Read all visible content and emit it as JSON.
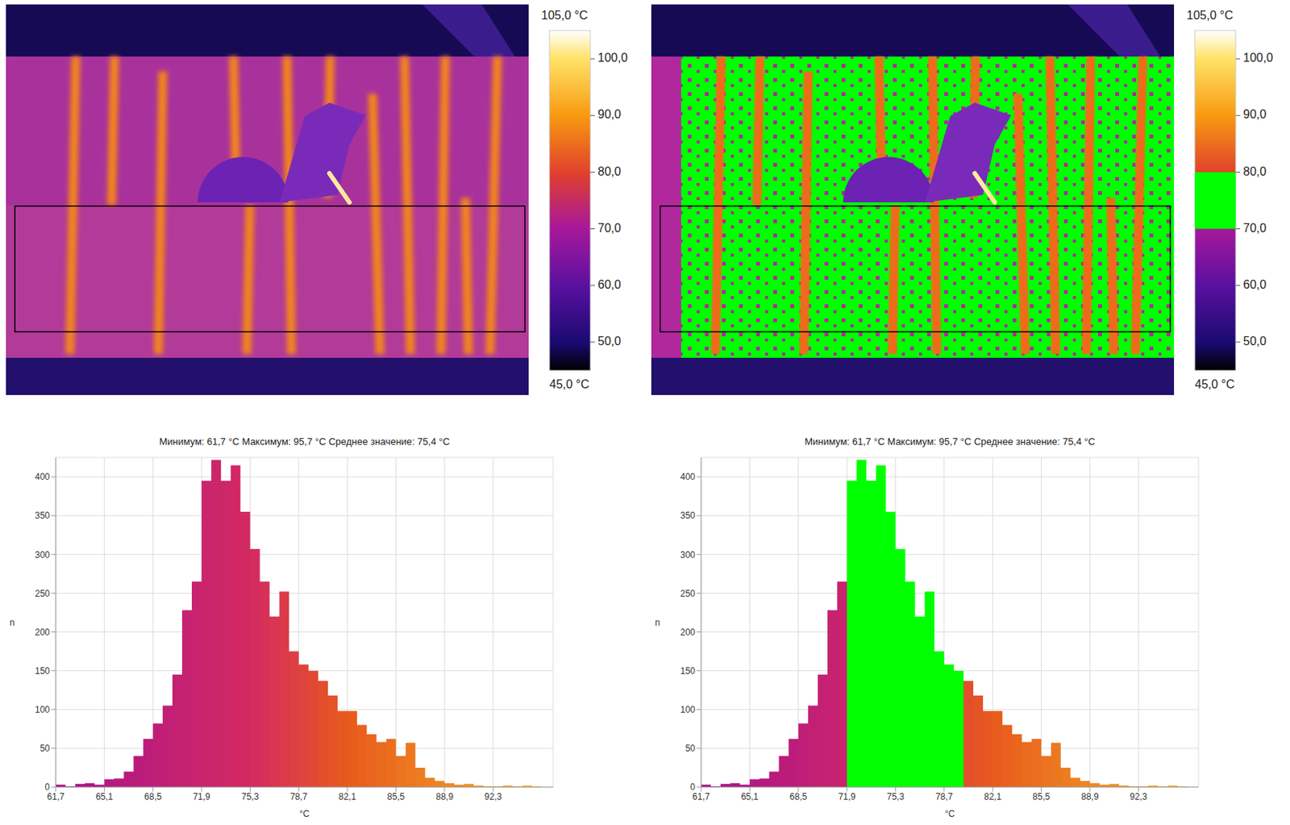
{
  "panels": [
    {
      "type": "thermal_image",
      "colorbar": {
        "range": [
          45,
          105
        ],
        "max_label": "105,0 °C",
        "min_label": "45,0 °C",
        "ticks": [
          {
            "value": 100,
            "label": "100,0"
          },
          {
            "value": 90,
            "label": "90,0"
          },
          {
            "value": 80,
            "label": "80,0"
          },
          {
            "value": 70,
            "label": "70,0"
          },
          {
            "value": 60,
            "label": "60,0"
          },
          {
            "value": 50,
            "label": "50,0"
          }
        ]
      }
    },
    {
      "type": "thermal_image",
      "colorbar": {
        "range": [
          45,
          105
        ],
        "max_label": "105,0 °C",
        "min_label": "45,0 °C",
        "ticks": [
          {
            "value": 100,
            "label": "100,0"
          },
          {
            "value": 90,
            "label": "90,0"
          },
          {
            "value": 80,
            "label": "80,0"
          },
          {
            "value": 70,
            "label": "70,0"
          },
          {
            "value": 60,
            "label": "60,0"
          },
          {
            "value": 50,
            "label": "50,0"
          }
        ],
        "isotherm": {
          "range": [
            70,
            80
          ],
          "color": "#00ff00"
        }
      }
    }
  ],
  "chart_data": [
    {
      "type": "histogram",
      "title": "Минимум: 61,7 °C Максимум: 95,7 °C Среднее значение: 75,4 °C",
      "x_label": "°C",
      "y_label": "n",
      "bins": [
        61.7,
        62.38,
        63.06,
        63.74,
        64.42,
        65.1,
        65.78,
        66.46,
        67.14,
        67.82,
        68.5,
        69.18,
        69.86,
        70.54,
        71.22,
        71.9,
        72.58,
        73.26,
        73.94,
        74.62,
        75.3,
        75.98,
        76.66,
        77.34,
        78.02,
        78.7,
        79.38,
        80.06,
        80.74,
        81.42,
        82.1,
        82.78,
        83.46,
        84.14,
        84.82,
        85.5,
        86.18,
        86.86,
        87.54,
        88.22,
        88.9,
        89.58,
        90.26,
        90.94,
        91.62,
        92.3,
        92.98,
        93.66,
        94.34,
        95.02,
        95.7
      ],
      "counts": [
        3,
        1,
        4,
        5,
        3,
        10,
        11,
        20,
        40,
        62,
        82,
        105,
        145,
        228,
        265,
        395,
        422,
        395,
        415,
        355,
        307,
        265,
        220,
        252,
        175,
        158,
        150,
        137,
        118,
        98,
        98,
        80,
        68,
        58,
        62,
        40,
        57,
        25,
        12,
        8,
        5,
        3,
        4,
        2,
        1,
        1,
        2,
        1,
        2,
        1
      ],
      "xlim": [
        61.7,
        96.5
      ],
      "xticks": [
        {
          "value": 61.7,
          "label": "61,7"
        },
        {
          "value": 65.1,
          "label": "65,1"
        },
        {
          "value": 68.5,
          "label": "68,5"
        },
        {
          "value": 71.9,
          "label": "71,9"
        },
        {
          "value": 75.3,
          "label": "75,3"
        },
        {
          "value": 78.7,
          "label": "78,7"
        },
        {
          "value": 82.1,
          "label": "82,1"
        },
        {
          "value": 85.5,
          "label": "85,5"
        },
        {
          "value": 88.9,
          "label": "88,9"
        },
        {
          "value": 92.3,
          "label": "92,3"
        }
      ],
      "ylim": [
        0,
        425
      ],
      "yticks": [
        0,
        50,
        100,
        150,
        200,
        250,
        300,
        350,
        400
      ],
      "grid": true
    },
    {
      "type": "histogram",
      "title": "Минимум: 61,7 °C Максимум: 95,7 °C Среднее значение: 75,4 °C",
      "x_label": "°C",
      "y_label": "n",
      "bins": [
        61.7,
        62.38,
        63.06,
        63.74,
        64.42,
        65.1,
        65.78,
        66.46,
        67.14,
        67.82,
        68.5,
        69.18,
        69.86,
        70.54,
        71.22,
        71.9,
        72.58,
        73.26,
        73.94,
        74.62,
        75.3,
        75.98,
        76.66,
        77.34,
        78.02,
        78.7,
        79.38,
        80.06,
        80.74,
        81.42,
        82.1,
        82.78,
        83.46,
        84.14,
        84.82,
        85.5,
        86.18,
        86.86,
        87.54,
        88.22,
        88.9,
        89.58,
        90.26,
        90.94,
        91.62,
        92.3,
        92.98,
        93.66,
        94.34,
        95.02,
        95.7
      ],
      "counts": [
        3,
        1,
        4,
        5,
        3,
        10,
        11,
        20,
        40,
        62,
        82,
        105,
        145,
        228,
        265,
        395,
        422,
        395,
        415,
        355,
        307,
        265,
        220,
        252,
        175,
        158,
        150,
        137,
        118,
        98,
        98,
        80,
        68,
        58,
        62,
        40,
        57,
        25,
        12,
        8,
        5,
        3,
        4,
        2,
        1,
        1,
        2,
        1,
        2,
        1
      ],
      "xlim": [
        61.7,
        96.5
      ],
      "xticks": [
        {
          "value": 61.7,
          "label": "61,7"
        },
        {
          "value": 65.1,
          "label": "65,1"
        },
        {
          "value": 68.5,
          "label": "68,5"
        },
        {
          "value": 71.9,
          "label": "71,9"
        },
        {
          "value": 75.3,
          "label": "75,3"
        },
        {
          "value": 78.7,
          "label": "78,7"
        },
        {
          "value": 82.1,
          "label": "82,1"
        },
        {
          "value": 85.5,
          "label": "85,5"
        },
        {
          "value": 88.9,
          "label": "88,9"
        },
        {
          "value": 92.3,
          "label": "92,3"
        }
      ],
      "ylim": [
        0,
        425
      ],
      "yticks": [
        0,
        50,
        100,
        150,
        200,
        250,
        300,
        350,
        400
      ],
      "grid": true,
      "isotherm": {
        "range": [
          71.9,
          80.1
        ],
        "color": "#00ff00"
      }
    }
  ]
}
